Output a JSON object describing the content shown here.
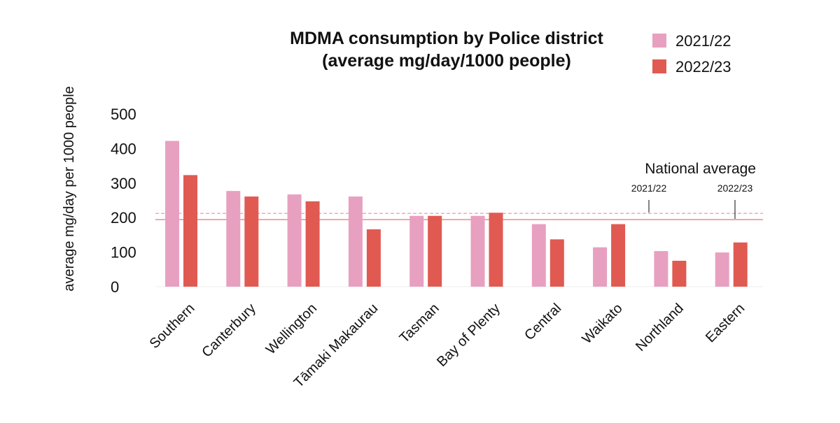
{
  "chart_data": {
    "type": "bar",
    "title_line1": "MDMA consumption by Police district",
    "title_line2": "(average mg/day/1000 people)",
    "ylabel": "average mg/day per 1000 people",
    "xlabel": "",
    "ylim": [
      0,
      500
    ],
    "yticks": [
      "0",
      "100",
      "200",
      "300",
      "400",
      "500"
    ],
    "grid": false,
    "legend_position": "top-right",
    "categories": [
      "Southern",
      "Canterbury",
      "Wellington",
      "Tāmaki Makaurau",
      "Tasman",
      "Bay of Plenty",
      "Central",
      "Waikato",
      "Northland",
      "Eastern"
    ],
    "series": [
      {
        "name": "2021/22",
        "color": "#e8a0c0",
        "values": [
          422,
          277,
          267,
          261,
          205,
          205,
          181,
          114,
          103,
          99
        ]
      },
      {
        "name": "2022/23",
        "color": "#e05a52",
        "values": [
          323,
          261,
          247,
          166,
          205,
          214,
          137,
          181,
          75,
          128
        ]
      }
    ],
    "national_average": {
      "label": "National average",
      "lines": [
        {
          "name": "2021/22",
          "value": 212,
          "color": "#f2a8c4",
          "style": "dashed"
        },
        {
          "name": "2022/23",
          "value": 194,
          "color": "#e88c8c",
          "style": "solid"
        }
      ]
    }
  }
}
